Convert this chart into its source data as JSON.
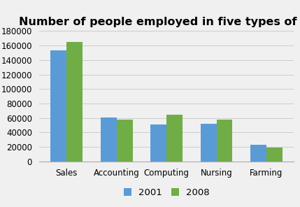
{
  "title": "Number of people employed in five types of work",
  "categories": [
    "Sales",
    "Accounting",
    "Computing",
    "Nursing",
    "Farming"
  ],
  "values_2001": [
    153000,
    61000,
    51000,
    52000,
    23000
  ],
  "values_2008": [
    165000,
    58000,
    65000,
    58000,
    19000
  ],
  "color_2001": "#5b9bd5",
  "color_2008": "#70ad47",
  "legend_labels": [
    "2001",
    "2008"
  ],
  "ylim": [
    0,
    180000
  ],
  "yticks": [
    0,
    20000,
    40000,
    60000,
    80000,
    100000,
    120000,
    140000,
    160000,
    180000
  ],
  "background_color": "#f0f0f0",
  "title_fontsize": 11.5,
  "tick_fontsize": 8.5,
  "legend_fontsize": 9.5
}
